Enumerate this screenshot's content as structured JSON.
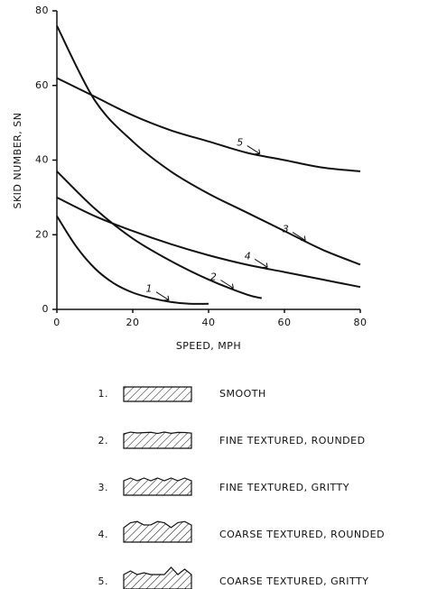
{
  "chart_data": {
    "type": "line",
    "xlabel": "SPEED, MPH",
    "ylabel": "SKID NUMBER, SN",
    "xlim": [
      0,
      80
    ],
    "ylim": [
      0,
      80
    ],
    "xticks": [
      0,
      20,
      40,
      60,
      80
    ],
    "yticks": [
      0,
      20,
      40,
      60,
      80
    ],
    "grid": false,
    "series": [
      {
        "name": "1",
        "color": "#111111",
        "x": [
          0,
          5,
          10,
          15,
          20,
          25,
          30,
          35,
          40
        ],
        "values": [
          25,
          17,
          11,
          7,
          4.5,
          3,
          2,
          1.5,
          1.5
        ]
      },
      {
        "name": "2",
        "color": "#111111",
        "x": [
          0,
          10,
          20,
          30,
          40,
          50,
          54
        ],
        "values": [
          37,
          27,
          19,
          13,
          8,
          4,
          3
        ]
      },
      {
        "name": "3",
        "color": "#111111",
        "x": [
          0,
          10,
          20,
          30,
          40,
          50,
          60,
          70,
          80
        ],
        "values": [
          76,
          56,
          45,
          37,
          31,
          26,
          21,
          16,
          12
        ]
      },
      {
        "name": "4",
        "color": "#111111",
        "x": [
          0,
          10,
          20,
          30,
          40,
          50,
          60,
          70,
          80
        ],
        "values": [
          30,
          25,
          21,
          17.5,
          14.5,
          12,
          10,
          8,
          6
        ]
      },
      {
        "name": "5",
        "color": "#111111",
        "x": [
          0,
          10,
          20,
          30,
          40,
          50,
          60,
          70,
          80
        ],
        "values": [
          62,
          57,
          52,
          48,
          45,
          42,
          40,
          38,
          37
        ]
      }
    ]
  },
  "legend": [
    {
      "number": "1.",
      "label": "SMOOTH"
    },
    {
      "number": "2.",
      "label": "FINE TEXTURED, ROUNDED"
    },
    {
      "number": "3.",
      "label": "FINE TEXTURED, GRITTY"
    },
    {
      "number": "4.",
      "label": "COARSE TEXTURED, ROUNDED"
    },
    {
      "number": "5.",
      "label": "COARSE TEXTURED, GRITTY"
    }
  ]
}
